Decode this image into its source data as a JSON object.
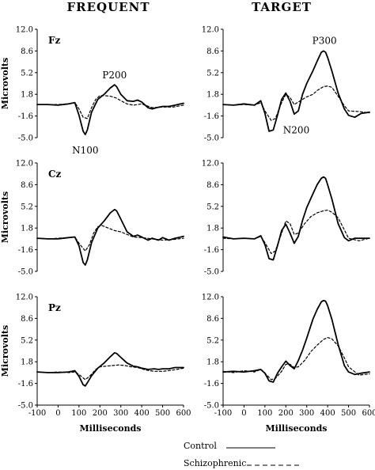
{
  "column_titles": [
    "FREQUENT",
    "TARGET"
  ],
  "legend": {
    "control": "Control",
    "schizophrenic": "Schizophrenic"
  },
  "chart_data": {
    "type": "line",
    "layout": "3 rows x 2 columns of ERP waveform panels",
    "xlabel": "Milliseconds",
    "ylabel": "Microvolts",
    "xlim": [
      -100,
      600
    ],
    "ylim": [
      -5.0,
      12.0
    ],
    "x_ticks": [
      "-100",
      "0",
      "100",
      "200",
      "300",
      "400",
      "500",
      "600"
    ],
    "y_ticks": [
      "12.0",
      "8.6",
      "5.2",
      "1.8",
      "-1.6",
      "-5.0"
    ],
    "series_styles": {
      "Control": "solid",
      "Schizophrenic": "dashed"
    },
    "panels": [
      {
        "condition": "FREQUENT",
        "electrode": "Fz",
        "annotations": [
          {
            "text": "P200",
            "x": 270,
            "y": 4.8
          },
          {
            "text": "N100",
            "x": 130,
            "y": -7.0
          }
        ],
        "series": [
          {
            "name": "Control",
            "x": [
              -100,
              -50,
              0,
              50,
              80,
              100,
              120,
              130,
              140,
              160,
              190,
              220,
              250,
              270,
              280,
              300,
              330,
              360,
              380,
              400,
              430,
              450,
              470,
              500,
              530,
              560,
              600
            ],
            "y": [
              0.2,
              0.2,
              0.1,
              0.3,
              0.5,
              -1.5,
              -4.0,
              -4.5,
              -3.8,
              -1.0,
              1.0,
              1.8,
              2.8,
              3.3,
              3.0,
              1.8,
              0.8,
              0.7,
              0.9,
              0.6,
              -0.3,
              -0.5,
              -0.3,
              -0.1,
              -0.1,
              0.1,
              0.4
            ]
          },
          {
            "name": "Schizophrenic",
            "x": [
              -100,
              -50,
              0,
              50,
              80,
              100,
              120,
              140,
              160,
              180,
              200,
              220,
              250,
              280,
              300,
              330,
              360,
              400,
              450,
              500,
              550,
              600
            ],
            "y": [
              0.2,
              0.2,
              0.2,
              0.3,
              0.5,
              -0.5,
              -1.8,
              -2.0,
              -0.3,
              1.0,
              1.6,
              1.6,
              1.5,
              1.2,
              0.8,
              0.3,
              0.1,
              0.3,
              -0.3,
              -0.2,
              -0.2,
              0.1
            ]
          }
        ]
      },
      {
        "condition": "TARGET",
        "electrode": "",
        "annotations": [
          {
            "text": "P300",
            "x": 385,
            "y": 10.2
          },
          {
            "text": "N200",
            "x": 250,
            "y": -3.8
          }
        ],
        "series": [
          {
            "name": "Control",
            "x": [
              -100,
              -50,
              0,
              50,
              80,
              100,
              120,
              140,
              160,
              180,
              200,
              220,
              240,
              260,
              280,
              300,
              330,
              350,
              370,
              380,
              390,
              400,
              420,
              450,
              480,
              500,
              530,
              560,
              600
            ],
            "y": [
              0.2,
              0.1,
              0.3,
              0.1,
              0.8,
              -1.2,
              -4.0,
              -3.8,
              -1.5,
              1.0,
              2.0,
              0.7,
              -1.3,
              -0.8,
              1.8,
              3.5,
              5.5,
              7.0,
              8.4,
              8.6,
              8.4,
              7.6,
              5.5,
              2.0,
              -0.5,
              -1.5,
              -1.8,
              -1.2,
              -1.0
            ]
          },
          {
            "name": "Schizophrenic",
            "x": [
              -100,
              -50,
              0,
              50,
              80,
              100,
              130,
              150,
              180,
              200,
              220,
              240,
              260,
              280,
              300,
              330,
              350,
              380,
              400,
              420,
              450,
              480,
              500,
              550,
              600
            ],
            "y": [
              0.2,
              0.1,
              0.2,
              0.1,
              0.5,
              -0.8,
              -2.3,
              -2.0,
              0.5,
              1.8,
              1.3,
              0.2,
              0.6,
              1.0,
              1.4,
              1.8,
              2.4,
              3.0,
              3.1,
              2.9,
              1.5,
              0.0,
              -0.8,
              -0.9,
              -1.1
            ]
          }
        ]
      },
      {
        "condition": "FREQUENT",
        "electrode": "Cz",
        "annotations": [],
        "series": [
          {
            "name": "Control",
            "x": [
              -100,
              -50,
              0,
              50,
              80,
              100,
              120,
              130,
              140,
              160,
              190,
              220,
              250,
              270,
              280,
              300,
              330,
              360,
              380,
              400,
              430,
              450,
              480,
              500,
              530,
              560,
              600
            ],
            "y": [
              0.2,
              0.1,
              0.1,
              0.3,
              0.4,
              -1.0,
              -3.6,
              -4.0,
              -3.2,
              -0.5,
              1.8,
              2.9,
              4.2,
              4.7,
              4.5,
              3.2,
              1.2,
              0.5,
              0.7,
              0.4,
              -0.1,
              0.2,
              -0.1,
              0.3,
              -0.1,
              0.2,
              0.5
            ]
          },
          {
            "name": "Schizophrenic",
            "x": [
              -100,
              -50,
              0,
              50,
              80,
              100,
              130,
              150,
              170,
              190,
              210,
              240,
              270,
              300,
              330,
              360,
              400,
              450,
              500,
              550,
              600
            ],
            "y": [
              0.2,
              0.1,
              0.2,
              0.3,
              0.4,
              -0.6,
              -1.8,
              -0.8,
              1.0,
              2.0,
              2.2,
              1.8,
              1.4,
              1.2,
              0.8,
              0.4,
              0.3,
              0.1,
              -0.1,
              0.0,
              0.2
            ]
          }
        ]
      },
      {
        "condition": "TARGET",
        "electrode": "",
        "annotations": [],
        "series": [
          {
            "name": "Control",
            "x": [
              -100,
              -50,
              0,
              50,
              80,
              100,
              120,
              140,
              160,
              180,
              200,
              220,
              240,
              260,
              280,
              300,
              330,
              350,
              370,
              380,
              390,
              400,
              420,
              450,
              480,
              500,
              530,
              560,
              600
            ],
            "y": [
              0.4,
              0.1,
              0.2,
              0.1,
              0.6,
              -0.8,
              -3.0,
              -3.2,
              -1.0,
              1.4,
              2.4,
              1.0,
              -0.6,
              0.5,
              3.0,
              5.0,
              7.2,
              8.6,
              9.6,
              9.8,
              9.6,
              8.6,
              6.4,
              2.5,
              0.3,
              -0.2,
              0.2,
              0.2,
              0.2
            ]
          },
          {
            "name": "Schizophrenic",
            "x": [
              -100,
              -50,
              0,
              50,
              80,
              100,
              130,
              150,
              180,
              200,
              220,
              240,
              260,
              290,
              320,
              350,
              380,
              400,
              420,
              450,
              480,
              500,
              550,
              600
            ],
            "y": [
              0.2,
              0.1,
              0.2,
              0.1,
              0.5,
              -0.5,
              -2.2,
              -1.8,
              1.0,
              2.9,
              2.5,
              0.8,
              1.0,
              2.5,
              3.6,
              4.2,
              4.5,
              4.6,
              4.3,
              3.4,
              1.5,
              0.2,
              -0.2,
              0.2
            ]
          }
        ]
      },
      {
        "condition": "FREQUENT",
        "electrode": "Pz",
        "annotations": [],
        "series": [
          {
            "name": "Control",
            "x": [
              -100,
              -50,
              0,
              50,
              80,
              100,
              120,
              130,
              140,
              160,
              190,
              220,
              250,
              270,
              280,
              300,
              330,
              360,
              380,
              400,
              430,
              460,
              480,
              500,
              530,
              560,
              600
            ],
            "y": [
              0.2,
              0.1,
              0.1,
              0.2,
              0.4,
              -0.5,
              -1.8,
              -2.0,
              -1.5,
              -0.4,
              0.8,
              1.6,
              2.6,
              3.2,
              3.1,
              2.5,
              1.6,
              1.1,
              1.0,
              0.8,
              0.6,
              0.7,
              0.6,
              0.7,
              0.7,
              0.9,
              0.9
            ]
          },
          {
            "name": "Schizophrenic",
            "x": [
              -100,
              -50,
              0,
              50,
              80,
              100,
              130,
              150,
              180,
              200,
              230,
              260,
              290,
              320,
              350,
              380,
              420,
              460,
              500,
              550,
              600
            ],
            "y": [
              0.2,
              0.1,
              0.2,
              0.1,
              0.2,
              -0.2,
              -1.0,
              -0.5,
              0.6,
              1.0,
              1.1,
              1.2,
              1.3,
              1.2,
              1.0,
              0.9,
              0.5,
              0.3,
              0.3,
              0.5,
              0.8
            ]
          }
        ]
      },
      {
        "condition": "TARGET",
        "electrode": "",
        "annotations": [],
        "series": [
          {
            "name": "Control",
            "x": [
              -100,
              -50,
              0,
              50,
              80,
              100,
              120,
              140,
              160,
              180,
              200,
              220,
              240,
              260,
              280,
              300,
              330,
              350,
              370,
              380,
              390,
              400,
              420,
              450,
              480,
              500,
              530,
              560,
              600
            ],
            "y": [
              0.2,
              0.3,
              0.2,
              0.4,
              0.6,
              0.0,
              -1.2,
              -1.4,
              0.0,
              1.0,
              1.9,
              1.2,
              0.7,
              2.0,
              3.6,
              5.5,
              8.5,
              10.0,
              11.2,
              11.4,
              11.3,
              10.6,
              8.5,
              4.5,
              1.2,
              0.2,
              -0.2,
              0.0,
              0.2
            ]
          },
          {
            "name": "Schizophrenic",
            "x": [
              -100,
              -50,
              0,
              50,
              80,
              100,
              130,
              150,
              180,
              200,
              220,
              240,
              260,
              290,
              320,
              350,
              380,
              400,
              420,
              450,
              480,
              500,
              550,
              600
            ],
            "y": [
              0.3,
              0.1,
              0.4,
              0.2,
              0.6,
              0.0,
              -1.0,
              -0.8,
              0.3,
              1.4,
              1.4,
              0.9,
              1.0,
              2.0,
              3.4,
              4.4,
              5.3,
              5.6,
              5.4,
              4.3,
              2.4,
              1.0,
              -0.3,
              -0.1
            ]
          }
        ]
      }
    ]
  }
}
